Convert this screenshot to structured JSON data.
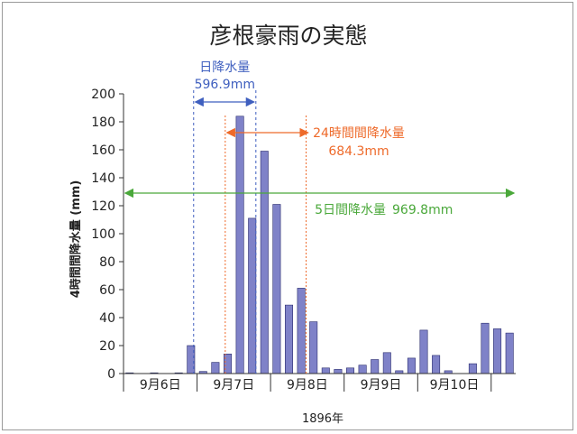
{
  "chart_data": {
    "type": "bar",
    "title": "彦根豪雨の実態",
    "xlabel": "1896年",
    "ylabel": "4時間間降水量 (mm)",
    "ylim": [
      0,
      200
    ],
    "yticks": [
      0,
      20,
      40,
      60,
      80,
      100,
      120,
      140,
      160,
      180,
      200
    ],
    "grid": false,
    "bar_color": "#7f82c8",
    "day_labels": [
      "9月6日",
      "9月7日",
      "9月8日",
      "9月9日",
      "9月10日"
    ],
    "values": [
      0.5,
      0,
      0.5,
      0,
      0.5,
      20,
      1.5,
      8,
      14,
      184,
      111,
      159,
      121,
      49,
      61,
      37,
      4,
      3,
      4,
      6,
      10,
      15,
      2,
      11,
      31,
      13,
      2,
      0,
      7,
      36,
      32,
      29
    ],
    "annotations": {
      "daily": {
        "label": "日降水量",
        "value": "596.9mm",
        "color": "#3f5fbf"
      },
      "h24": {
        "label": "24時間間降水量",
        "value": "684.3mm",
        "color": "#ee6a2a"
      },
      "d5": {
        "label": "5日間降水量",
        "value": "969.8mm",
        "color": "#4aa83a"
      }
    }
  }
}
